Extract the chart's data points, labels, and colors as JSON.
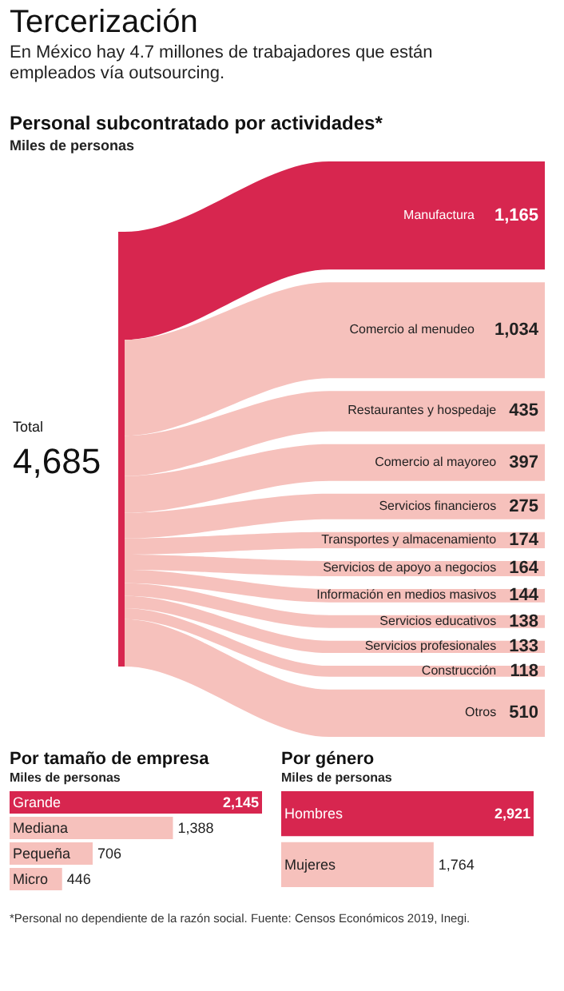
{
  "chart_data": [
    {
      "type": "other",
      "title": "Tercerización",
      "subtitle": "En México hay 4.7 millones de trabajadores que están empleados vía outsourcing."
    },
    {
      "type": "other",
      "title": "Personal subcontratado por actividades*",
      "subtitle": "Miles de personas",
      "annotations": [
        "Total",
        "4,685"
      ],
      "categories": [
        "Manufactura",
        "Comercio al menudeo",
        "Restaurantes y hospedaje",
        "Comercio al mayoreo",
        "Servicios financieros",
        "Transportes y almacenamiento",
        "Servicios de apoyo a negocios",
        "Información en medios masivos",
        "Servicios educativos",
        "Servicios profesionales",
        "Construcción",
        "Otros"
      ],
      "values": [
        1165,
        1034,
        435,
        397,
        275,
        174,
        164,
        144,
        138,
        133,
        118,
        510
      ],
      "colors": [
        "#d7264f",
        "#f6c1bc",
        "#f6c1bc",
        "#f6c1bc",
        "#f6c1bc",
        "#f6c1bc",
        "#f6c1bc",
        "#f6c1bc",
        "#f6c1bc",
        "#f6c1bc",
        "#f6c1bc",
        "#f6c1bc"
      ],
      "value_labels": [
        "1,165",
        "1,034",
        "435",
        "397",
        "275",
        "174",
        "164",
        "144",
        "138",
        "133",
        "118",
        "510"
      ]
    },
    {
      "type": "bar",
      "orientation": "horizontal",
      "title": "Por tamaño de empresa",
      "subtitle": "Miles de personas",
      "categories": [
        "Grande",
        "Mediana",
        "Pequeña",
        "Micro"
      ],
      "values": [
        2145,
        1388,
        706,
        446
      ],
      "colors": [
        "#d7264f",
        "#f6c1bc",
        "#f6c1bc",
        "#f6c1bc"
      ],
      "value_labels": [
        "2,145",
        "1,388",
        "706",
        "446"
      ]
    },
    {
      "type": "bar",
      "orientation": "horizontal",
      "title": "Por género",
      "subtitle": "Miles de personas",
      "categories": [
        "Hombres",
        "Mujeres"
      ],
      "values": [
        2921,
        1764
      ],
      "colors": [
        "#d7264f",
        "#f6c1bc"
      ],
      "value_labels": [
        "2,921",
        "1,764"
      ]
    },
    {
      "type": "other",
      "annotations": [
        "*Personal no dependiente de la razón social. Fuente: Censos Económicos 2019, Inegi."
      ]
    }
  ]
}
